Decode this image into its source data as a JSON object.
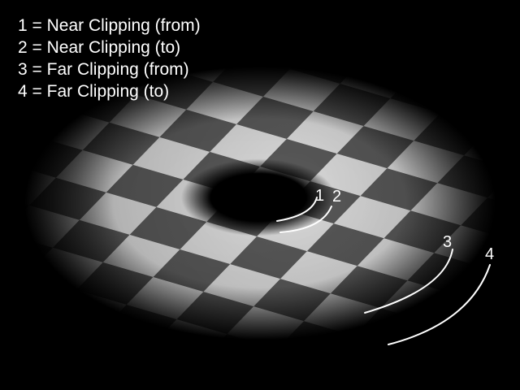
{
  "legend": [
    {
      "number": "1",
      "text": "1 = Near Clipping (from)"
    },
    {
      "number": "2",
      "text": "2 = Near Clipping (to)"
    },
    {
      "number": "3",
      "text": "3 = Far Clipping (from)"
    },
    {
      "number": "4",
      "text": "4 = Far Clipping (to)"
    }
  ],
  "markers": {
    "near_from": "1",
    "near_to": "2",
    "far_from": "3",
    "far_to": "4"
  },
  "colors": {
    "background": "#000000",
    "text": "#ffffff",
    "tile_light": "#dcdcdc",
    "tile_dark": "#5a5a5a"
  }
}
